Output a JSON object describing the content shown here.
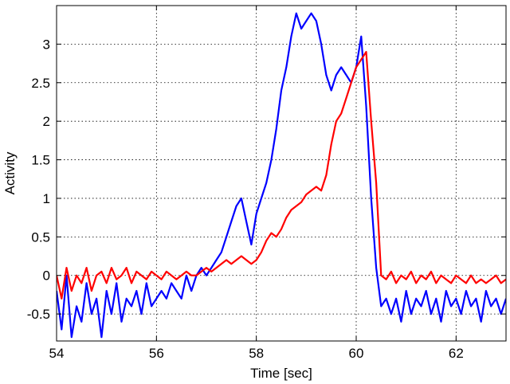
{
  "chart_data": {
    "type": "line",
    "xlabel": "Time [sec]",
    "ylabel": "Activity",
    "xlim": [
      54,
      63
    ],
    "ylim": [
      -0.85,
      3.5
    ],
    "xticks": [
      54,
      56,
      58,
      60,
      62
    ],
    "yticks": [
      -0.5,
      0,
      0.5,
      1,
      1.5,
      2,
      2.5,
      3
    ],
    "ytick_labels": [
      "-0.5",
      "0",
      "0.5",
      "1",
      "1.5",
      "2",
      "2.5",
      "3"
    ],
    "grid": true,
    "series": [
      {
        "color": "#0000ff",
        "x": [
          54.0,
          54.1,
          54.2,
          54.3,
          54.4,
          54.5,
          54.6,
          54.7,
          54.8,
          54.9,
          55.0,
          55.1,
          55.2,
          55.3,
          55.4,
          55.5,
          55.6,
          55.7,
          55.8,
          55.9,
          56.0,
          56.1,
          56.2,
          56.3,
          56.4,
          56.5,
          56.6,
          56.7,
          56.8,
          56.9,
          57.0,
          57.1,
          57.2,
          57.3,
          57.4,
          57.5,
          57.6,
          57.7,
          57.8,
          57.9,
          58.0,
          58.1,
          58.2,
          58.3,
          58.4,
          58.5,
          58.6,
          58.7,
          58.8,
          58.9,
          59.0,
          59.1,
          59.2,
          59.3,
          59.4,
          59.5,
          59.6,
          59.7,
          59.8,
          59.9,
          60.0,
          60.1,
          60.2,
          60.3,
          60.4,
          60.5,
          60.6,
          60.7,
          60.8,
          60.9,
          61.0,
          61.1,
          61.2,
          61.3,
          61.4,
          61.5,
          61.6,
          61.7,
          61.8,
          61.9,
          62.0,
          62.1,
          62.2,
          62.3,
          62.4,
          62.5,
          62.6,
          62.7,
          62.8,
          62.9,
          63.0
        ],
        "y": [
          -0.2,
          -0.7,
          0.0,
          -0.8,
          -0.4,
          -0.6,
          -0.1,
          -0.5,
          -0.3,
          -0.8,
          -0.2,
          -0.5,
          -0.1,
          -0.6,
          -0.3,
          -0.4,
          -0.2,
          -0.5,
          -0.1,
          -0.4,
          -0.3,
          -0.2,
          -0.3,
          -0.1,
          -0.2,
          -0.3,
          0.0,
          -0.2,
          0.0,
          0.1,
          0.0,
          0.1,
          0.2,
          0.3,
          0.5,
          0.7,
          0.9,
          1.0,
          0.7,
          0.4,
          0.8,
          1.0,
          1.2,
          1.5,
          1.9,
          2.4,
          2.7,
          3.1,
          3.4,
          3.2,
          3.3,
          3.4,
          3.3,
          3.0,
          2.6,
          2.4,
          2.6,
          2.7,
          2.6,
          2.5,
          2.7,
          3.1,
          2.2,
          1.0,
          0.1,
          -0.4,
          -0.3,
          -0.5,
          -0.3,
          -0.6,
          -0.2,
          -0.5,
          -0.3,
          -0.4,
          -0.2,
          -0.5,
          -0.3,
          -0.6,
          -0.2,
          -0.4,
          -0.3,
          -0.5,
          -0.2,
          -0.4,
          -0.3,
          -0.6,
          -0.2,
          -0.4,
          -0.3,
          -0.5,
          -0.3
        ]
      },
      {
        "color": "#ff0000",
        "x": [
          54.0,
          54.1,
          54.2,
          54.3,
          54.4,
          54.5,
          54.6,
          54.7,
          54.8,
          54.9,
          55.0,
          55.1,
          55.2,
          55.3,
          55.4,
          55.5,
          55.6,
          55.7,
          55.8,
          55.9,
          56.0,
          56.1,
          56.2,
          56.3,
          56.4,
          56.5,
          56.6,
          56.7,
          56.8,
          56.9,
          57.0,
          57.1,
          57.2,
          57.3,
          57.4,
          57.5,
          57.6,
          57.7,
          57.8,
          57.9,
          58.0,
          58.1,
          58.2,
          58.3,
          58.4,
          58.5,
          58.6,
          58.7,
          58.8,
          58.9,
          59.0,
          59.1,
          59.2,
          59.3,
          59.4,
          59.5,
          59.6,
          59.7,
          59.8,
          59.9,
          60.0,
          60.1,
          60.2,
          60.3,
          60.4,
          60.5,
          60.6,
          60.7,
          60.8,
          60.9,
          61.0,
          61.1,
          61.2,
          61.3,
          61.4,
          61.5,
          61.6,
          61.7,
          61.8,
          61.9,
          62.0,
          62.1,
          62.2,
          62.3,
          62.4,
          62.5,
          62.6,
          62.7,
          62.8,
          62.9,
          63.0
        ],
        "y": [
          0.0,
          -0.3,
          0.1,
          -0.2,
          0.0,
          -0.1,
          0.1,
          -0.2,
          0.0,
          0.05,
          -0.1,
          0.1,
          -0.05,
          0.0,
          0.1,
          -0.1,
          0.05,
          0.0,
          -0.05,
          0.05,
          0.0,
          -0.05,
          0.05,
          0.0,
          -0.05,
          0.0,
          0.05,
          0.0,
          0.0,
          0.05,
          0.1,
          0.05,
          0.1,
          0.15,
          0.2,
          0.15,
          0.2,
          0.25,
          0.2,
          0.15,
          0.2,
          0.3,
          0.45,
          0.55,
          0.5,
          0.6,
          0.75,
          0.85,
          0.9,
          0.95,
          1.05,
          1.1,
          1.15,
          1.1,
          1.3,
          1.7,
          2.0,
          2.1,
          2.3,
          2.5,
          2.7,
          2.8,
          2.9,
          2.0,
          1.2,
          0.0,
          -0.05,
          0.05,
          -0.1,
          0.0,
          -0.05,
          0.05,
          -0.1,
          0.0,
          -0.05,
          0.05,
          -0.1,
          0.0,
          -0.05,
          -0.1,
          0.0,
          -0.05,
          -0.1,
          0.0,
          -0.1,
          -0.05,
          -0.1,
          -0.05,
          0.0,
          -0.1,
          -0.05
        ]
      }
    ]
  }
}
